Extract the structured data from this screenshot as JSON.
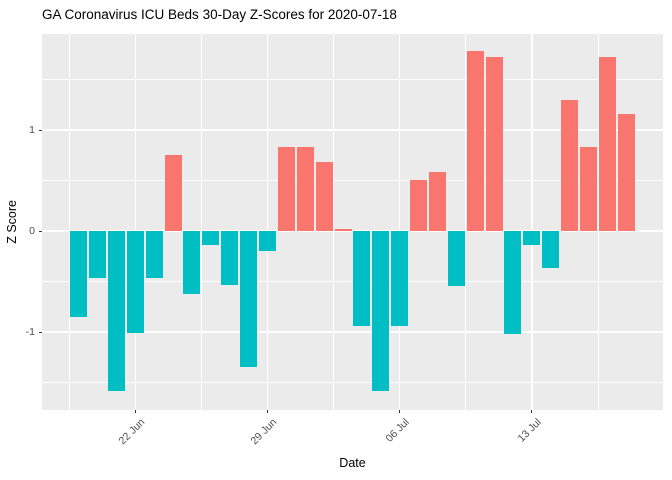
{
  "chart_data": {
    "type": "bar",
    "title": "GA Coronavirus ICU Beds 30-Day Z-Scores for 2020-07-18",
    "xlabel": "Date",
    "ylabel": "Z Score",
    "x": [
      "2020-06-19",
      "2020-06-20",
      "2020-06-21",
      "2020-06-22",
      "2020-06-23",
      "2020-06-24",
      "2020-06-25",
      "2020-06-26",
      "2020-06-27",
      "2020-06-28",
      "2020-06-29",
      "2020-06-30",
      "2020-07-01",
      "2020-07-02",
      "2020-07-03",
      "2020-07-04",
      "2020-07-05",
      "2020-07-06",
      "2020-07-07",
      "2020-07-08",
      "2020-07-09",
      "2020-07-10",
      "2020-07-11",
      "2020-07-12",
      "2020-07-13",
      "2020-07-14",
      "2020-07-15",
      "2020-07-16",
      "2020-07-17",
      "2020-07-18"
    ],
    "values": [
      -0.85,
      -0.46,
      -1.58,
      -1.01,
      -0.46,
      0.75,
      -0.62,
      -0.14,
      -0.53,
      -1.34,
      -0.2,
      0.83,
      0.83,
      0.68,
      0.02,
      -0.94,
      -1.58,
      -0.94,
      0.51,
      0.58,
      -0.54,
      1.78,
      1.72,
      -1.02,
      -0.14,
      -0.37,
      1.3,
      0.83,
      1.72,
      1.16
    ],
    "x_major_ticks": [
      {
        "date": "2020-06-22",
        "label": "22 Jun"
      },
      {
        "date": "2020-06-29",
        "label": "29 Jun"
      },
      {
        "date": "2020-07-06",
        "label": "06 Jul"
      },
      {
        "date": "2020-07-13",
        "label": "13 Jul"
      }
    ],
    "y_major_ticks": [
      {
        "value": 1,
        "label": "1"
      },
      {
        "value": 0,
        "label": "0"
      },
      {
        "value": -1,
        "label": "-1"
      }
    ],
    "y_minor_ticks": [
      1.5,
      0.5,
      -0.5,
      -1.5
    ],
    "ylim": [
      -1.77,
      1.95
    ],
    "grid": true,
    "legend_position": "none",
    "colors": {
      "positive_bar": "#F8766D",
      "negative_bar": "#00BFC4",
      "panel_background": "#EBEBEB",
      "gridline": "#FFFFFF",
      "axis_text": "#4D4D4D",
      "title_text": "#000000",
      "tick_mark": "#333333",
      "figure_background": "#FFFFFF"
    }
  }
}
